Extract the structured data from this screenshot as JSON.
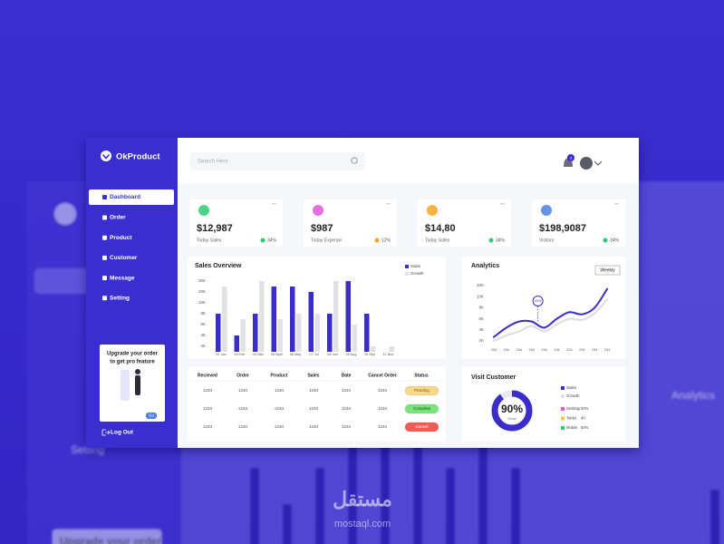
{
  "background": {
    "labels": [
      "Analytics",
      "Setting",
      "Upgrade your order"
    ]
  },
  "watermark": [
    "مستقل",
    "mostaql.com"
  ],
  "sidebar": {
    "brand": "OkProduct",
    "menu": [
      "Dashboard",
      "Order",
      "Product",
      "Customer",
      "Message",
      "Setting"
    ],
    "promo": [
      "Upgrade your order",
      "to get pro feature"
    ],
    "promo_button": "Go",
    "logout": "Log Out"
  },
  "header": {
    "search_placeholder": "Search Here",
    "notifications": "3"
  },
  "stats": [
    {
      "value": "$12,987",
      "label": "Today Sales",
      "change": "34%"
    },
    {
      "value": "$987",
      "label": "Today Expense",
      "change": "12%"
    },
    {
      "value": "$14,80",
      "label": "Today Sales",
      "change": "34%"
    },
    {
      "value": "$198,9087",
      "label": "Visitors",
      "change": "34%"
    }
  ],
  "chart_data": [
    {
      "type": "bar",
      "title": "Sales Overview",
      "categories": [
        "02 Jan",
        "03 Feb",
        "04 Mar",
        "05 April",
        "06 May",
        "07 Jul",
        "08 Jun",
        "09 Aug",
        "10 Sep",
        "11 Nov"
      ],
      "series": [
        {
          "name": "Sales",
          "color": "#3a2dc8",
          "values": [
            8000,
            4000,
            8000,
            25000,
            25000,
            20000,
            8000,
            30000,
            8000,
            0
          ]
        },
        {
          "name": "Growth",
          "color": "#e2e2e6",
          "values": [
            25000,
            7000,
            30000,
            7000,
            8000,
            8000,
            30000,
            6000,
            2000,
            2000
          ]
        }
      ],
      "ylim": [
        0,
        30000
      ],
      "yticks": [
        {
          "value": 2000,
          "label": "2K"
        },
        {
          "value": 4000,
          "label": "4K"
        },
        {
          "value": 6000,
          "label": "6K"
        },
        {
          "value": 8000,
          "label": "8K"
        },
        {
          "value": 10000,
          "label": "10K"
        },
        {
          "value": 20000,
          "label": "20K"
        },
        {
          "value": 30000,
          "label": "30K"
        }
      ],
      "legend": "top-right"
    },
    {
      "type": "line",
      "title": "Analytics",
      "button": "Weekly",
      "categories": [
        "234",
        "234",
        "234",
        "234",
        "234",
        "234",
        "234",
        "234",
        "234",
        "234"
      ],
      "series": [
        {
          "name": "Sales",
          "color": "#3a2dc8",
          "values": [
            2700,
            4400,
            5500,
            5500,
            4400,
            6000,
            7200,
            6800,
            8000,
            17000
          ]
        },
        {
          "name": "Growth",
          "color": "#dcdce2",
          "values": [
            2000,
            3000,
            3700,
            4700,
            3700,
            5000,
            6000,
            5800,
            7000,
            9500
          ]
        }
      ],
      "ylim": [
        0,
        20000
      ],
      "yticks": [
        {
          "value": 2000,
          "label": "2K"
        },
        {
          "value": 4000,
          "label": "4K"
        },
        {
          "value": 6000,
          "label": "6K"
        },
        {
          "value": 8000,
          "label": "8K"
        },
        {
          "value": 10000,
          "label": "10K"
        },
        {
          "value": 20000,
          "label": "20K"
        }
      ],
      "tooltip": "40%"
    }
  ],
  "table": {
    "headers": [
      "Recieved",
      "Order",
      "Product",
      "Sales",
      "Date",
      "Cancel Order",
      "Status"
    ],
    "rows": [
      [
        "1234",
        "1234",
        "1234",
        "1234",
        "1234",
        "1234",
        "Pending"
      ],
      [
        "1234",
        "1234",
        "1234",
        "1234",
        "1234",
        "1234",
        "Complete"
      ],
      [
        "1234",
        "1234",
        "1234",
        "1234",
        "1234",
        "1234",
        "Cancel"
      ]
    ]
  },
  "visit": {
    "title": "Visit Customer",
    "value": 90,
    "value_label": "90%",
    "label": "Good",
    "legend": [
      "Sales",
      "Growth"
    ],
    "devices": [
      {
        "name": "Desktop",
        "value": "20%"
      },
      {
        "name": "Tablet",
        "value": "40"
      },
      {
        "name": "Mobile",
        "value": "50%"
      }
    ]
  }
}
